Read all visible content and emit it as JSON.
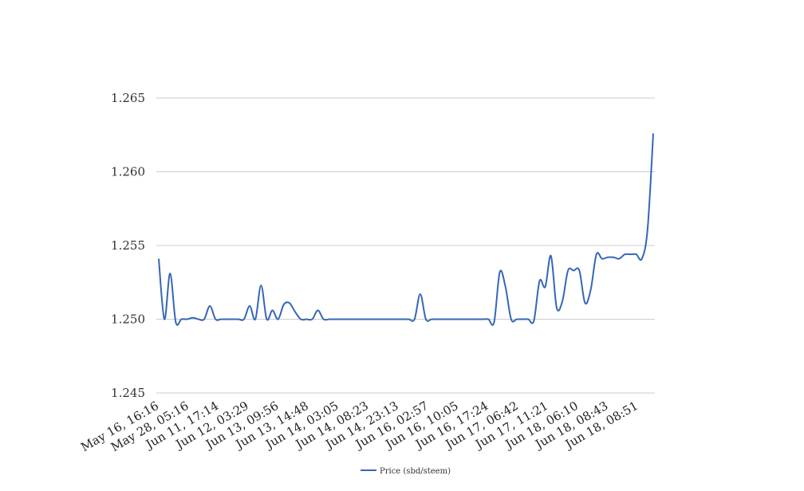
{
  "chart_data": {
    "type": "line",
    "title": "",
    "xlabel": "",
    "ylabel": "",
    "ylim": [
      1.245,
      1.265
    ],
    "yticks": [
      "1.245",
      "1.250",
      "1.255",
      "1.260",
      "1.265"
    ],
    "xticks": [
      "May 16, 16:16",
      "May 28, 05:16",
      "Jun 11, 17:14",
      "Jun 12, 03:29",
      "Jun 13, 09:56",
      "Jun 13, 14:48",
      "Jun 14, 03:05",
      "Jun 14, 08:23",
      "Jun 14, 23:13",
      "Jun 16, 02:57",
      "Jun 16, 10:05",
      "Jun 16, 17:24",
      "Jun 17, 06:42",
      "Jun 17, 11:21",
      "Jun 18, 06:10",
      "Jun 18, 08:43",
      "Jun 18, 08:51"
    ],
    "grid": true,
    "legend_position": "bottom",
    "colors": {
      "series": "#3566b8"
    },
    "series": [
      {
        "name": "Price (sbd/steem)",
        "values": [
          1.2541,
          1.25,
          1.2531,
          1.2498,
          1.25,
          1.25,
          1.2501,
          1.25,
          1.25,
          1.2509,
          1.25,
          1.25,
          1.25,
          1.25,
          1.25,
          1.25,
          1.2509,
          1.25,
          1.2523,
          1.25,
          1.2506,
          1.25,
          1.251,
          1.2511,
          1.2505,
          1.25,
          1.25,
          1.25,
          1.2506,
          1.25,
          1.25,
          1.25,
          1.25,
          1.25,
          1.25,
          1.25,
          1.25,
          1.25,
          1.25,
          1.25,
          1.25,
          1.25,
          1.25,
          1.25,
          1.25,
          1.25,
          1.2517,
          1.25,
          1.25,
          1.25,
          1.25,
          1.25,
          1.25,
          1.25,
          1.25,
          1.25,
          1.25,
          1.25,
          1.25,
          1.2498,
          1.2532,
          1.2522,
          1.25,
          1.25,
          1.25,
          1.25,
          1.2499,
          1.2526,
          1.2522,
          1.2543,
          1.2508,
          1.2512,
          1.2533,
          1.2533,
          1.2533,
          1.2511,
          1.252,
          1.2544,
          1.2541,
          1.2542,
          1.2542,
          1.2541,
          1.2544,
          1.2544,
          1.2544,
          1.2541,
          1.2561,
          1.2626
        ]
      }
    ]
  }
}
